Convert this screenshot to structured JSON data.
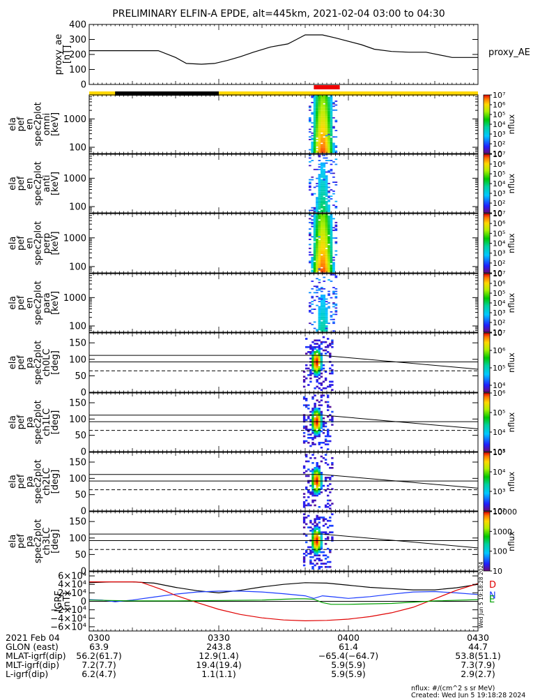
{
  "chart_data": {
    "type": "line",
    "title": "PRELIMINARY ELFIN-A EPDE, alt=445km, 2021-02-04 03:00 to 04:30",
    "time_axis": {
      "range_minutes": [
        0,
        90
      ],
      "ticks": [
        {
          "t": 0,
          "label": "0300"
        },
        {
          "t": 30,
          "label": "0330"
        },
        {
          "t": 60,
          "label": "0400"
        },
        {
          "t": 90,
          "label": "0430"
        }
      ]
    },
    "bars": {
      "red": [
        [
          52.0,
          58.0
        ]
      ],
      "black": [
        [
          6.0,
          30.0
        ]
      ]
    },
    "panels": [
      {
        "id": "proxy_ae",
        "kind": "line",
        "ylabel": [
          "proxy_ae",
          "[nT]"
        ],
        "ylim": [
          0,
          400
        ],
        "yticks": [
          {
            "v": 0,
            "label": "0"
          },
          {
            "v": 100,
            "label": "100"
          },
          {
            "v": 200,
            "label": "200"
          },
          {
            "v": 300,
            "label": "300"
          },
          {
            "v": 400,
            "label": "400"
          }
        ],
        "legend": "proxy_AE",
        "series": [
          {
            "color": "#000000",
            "t": [
              0,
              16,
              20,
              22.5,
              26,
              29,
              32,
              35,
              38,
              42,
              46,
              48,
              50,
              54,
              57,
              63,
              66,
              70,
              74,
              78,
              84,
              90
            ],
            "v": [
              225,
              225,
              180,
              140,
              135,
              140,
              160,
              185,
              215,
              250,
              270,
              300,
              330,
              330,
              310,
              265,
              235,
              220,
              215,
              215,
              180,
              180
            ]
          }
        ]
      },
      {
        "id": "omni",
        "kind": "spec_energy",
        "ylabel": [
          "ela",
          "pef",
          "en",
          "spec2plot",
          "omni",
          "[keV]"
        ],
        "ylim": [
          60,
          7000
        ],
        "yticks": [
          {
            "v": 100,
            "label": "100"
          },
          {
            "v": 1000,
            "label": "1000"
          }
        ],
        "colorbar": {
          "min_exp": 1,
          "max_exp": 7,
          "labels": [
            "10",
            "10²",
            "10³",
            "10⁴",
            "10⁵",
            "10⁶",
            "10⁷"
          ],
          "title": "nflux"
        },
        "peak": 6.8
      },
      {
        "id": "anti",
        "kind": "spec_energy",
        "ylabel": [
          "ela",
          "pef",
          "en",
          "spec2plot",
          "anti",
          "[keV]"
        ],
        "ylim": [
          60,
          7000
        ],
        "yticks": [
          {
            "v": 100,
            "label": "100"
          },
          {
            "v": 1000,
            "label": "1000"
          }
        ],
        "colorbar": {
          "min_exp": 1,
          "max_exp": 7,
          "labels": [
            "10",
            "10²",
            "10³",
            "10⁴",
            "10⁵",
            "10⁶",
            "10⁷"
          ],
          "title": "nflux"
        },
        "peak": 4.2
      },
      {
        "id": "perp",
        "kind": "spec_energy",
        "ylabel": [
          "ela",
          "pef",
          "en",
          "spec2plot",
          "perp",
          "[keV]"
        ],
        "ylim": [
          60,
          7000
        ],
        "yticks": [
          {
            "v": 100,
            "label": "100"
          },
          {
            "v": 1000,
            "label": "1000"
          }
        ],
        "colorbar": {
          "min_exp": 1,
          "max_exp": 7,
          "labels": [
            "10",
            "10²",
            "10³",
            "10⁴",
            "10⁵",
            "10⁶",
            "10⁷"
          ],
          "title": "nflux"
        },
        "peak": 6.8
      },
      {
        "id": "para",
        "kind": "spec_energy",
        "ylabel": [
          "ela",
          "pef",
          "en",
          "spec2plot",
          "para",
          "[keV]"
        ],
        "ylim": [
          60,
          7000
        ],
        "yticks": [
          {
            "v": 100,
            "label": "100"
          },
          {
            "v": 1000,
            "label": "1000"
          }
        ],
        "colorbar": {
          "min_exp": 1,
          "max_exp": 7,
          "labels": [
            "10",
            "10²",
            "10³",
            "10⁴",
            "10⁵",
            "10⁶",
            "10⁷"
          ],
          "title": "nflux"
        },
        "peak": 3.8
      },
      {
        "id": "ch0LC",
        "kind": "spec_pa",
        "ylabel": [
          "ela",
          "pef",
          "pa",
          "spec2plot",
          "ch0LC",
          "[deg]"
        ],
        "ylim": [
          0,
          180
        ],
        "yticks": [
          {
            "v": 0,
            "label": "0"
          },
          {
            "v": 50,
            "label": "50"
          },
          {
            "v": 100,
            "label": "100"
          },
          {
            "v": 150,
            "label": "150"
          }
        ],
        "colorbar": {
          "min_exp": 3.6,
          "max_exp": 7,
          "labels": [
            "10⁴",
            "10⁵",
            "10⁶",
            "10⁷"
          ],
          "label_exps": [
            4,
            5,
            6,
            7
          ],
          "title": "nflux"
        },
        "lc_lines": true
      },
      {
        "id": "ch1LC",
        "kind": "spec_pa",
        "ylabel": [
          "ela",
          "pef",
          "pa",
          "spec2plot",
          "ch1LC",
          "[deg]"
        ],
        "ylim": [
          0,
          180
        ],
        "yticks": [
          {
            "v": 0,
            "label": "0"
          },
          {
            "v": 50,
            "label": "50"
          },
          {
            "v": 100,
            "label": "100"
          },
          {
            "v": 150,
            "label": "150"
          }
        ],
        "colorbar": {
          "min_exp": 3,
          "max_exp": 6,
          "labels": [
            "10³",
            "10⁴",
            "10⁵",
            "10⁶"
          ],
          "label_exps": [
            3,
            4,
            5,
            6
          ],
          "title": "nflux"
        },
        "lc_lines": true
      },
      {
        "id": "ch2LC",
        "kind": "spec_pa",
        "ylabel": [
          "ela",
          "pef",
          "pa",
          "spec2plot",
          "ch2LC",
          "[deg]"
        ],
        "ylim": [
          0,
          180
        ],
        "yticks": [
          {
            "v": 0,
            "label": "0"
          },
          {
            "v": 50,
            "label": "50"
          },
          {
            "v": 100,
            "label": "100"
          },
          {
            "v": 150,
            "label": "150"
          }
        ],
        "colorbar": {
          "min_exp": 2,
          "max_exp": 5,
          "labels": [
            "10²",
            "10³",
            "10⁴",
            "10⁵"
          ],
          "label_exps": [
            2,
            3,
            4,
            5
          ],
          "title": "nflux"
        },
        "lc_lines": true
      },
      {
        "id": "ch3LC",
        "kind": "spec_pa",
        "ylabel": [
          "ela",
          "pef",
          "pa",
          "spec2plot",
          "ch3LC",
          "[deg]"
        ],
        "ylim": [
          0,
          180
        ],
        "yticks": [
          {
            "v": 0,
            "label": "0"
          },
          {
            "v": 50,
            "label": "50"
          },
          {
            "v": 100,
            "label": "100"
          },
          {
            "v": 150,
            "label": "150"
          }
        ],
        "colorbar": {
          "min_exp": 1,
          "max_exp": 4,
          "labels": [
            "10",
            "100",
            "1000",
            "10000"
          ],
          "label_exps": [
            1,
            2,
            3,
            4
          ],
          "title": "nflux"
        },
        "lc_lines": true
      },
      {
        "id": "igrf",
        "kind": "line",
        "ylabel": [
          "IGRF",
          "[nT]"
        ],
        "ylim": [
          -70000,
          70000
        ],
        "yticks": [
          {
            "v": -60000,
            "label": "−6×10⁴"
          },
          {
            "v": -40000,
            "label": "−4×10⁴"
          },
          {
            "v": -20000,
            "label": "−2×10⁴"
          },
          {
            "v": 0,
            "label": "0"
          },
          {
            "v": 20000,
            "label": "2×10⁴"
          },
          {
            "v": 40000,
            "label": "4×10⁴"
          },
          {
            "v": 60000,
            "label": "6×10⁴"
          }
        ],
        "legend_letters": [
          {
            "text": "D",
            "color": "#e00000",
            "v": 40000
          },
          {
            "text": "N",
            "color": "#1a3aff",
            "v": 15000
          },
          {
            "text": "E",
            "color": "#00a000",
            "v": 6000
          }
        ],
        "series": [
          {
            "color": "#000000",
            "t": [
              0,
              5,
              10,
              15,
              20,
              25,
              30,
              35,
              40,
              45,
              50,
              55,
              60,
              65,
              70,
              75,
              80,
              85,
              90
            ],
            "v": [
              44000,
              46000,
              46000,
              43000,
              33000,
              25000,
              20000,
              26000,
              34000,
              40000,
              44000,
              43000,
              38000,
              33000,
              30000,
              27000,
              27000,
              32000,
              40000
            ]
          },
          {
            "color": "#1a3aff",
            "t": [
              0,
              3,
              6,
              10,
              15,
              20,
              25,
              30,
              35,
              40,
              45,
              50,
              52,
              54,
              57,
              60,
              65,
              70,
              75,
              80,
              85,
              90
            ],
            "v": [
              4000,
              3000,
              -1000,
              3000,
              10000,
              17000,
              22000,
              24000,
              24000,
              22000,
              18000,
              13000,
              7000,
              13000,
              10000,
              7000,
              11000,
              17000,
              22000,
              23000,
              20000,
              16000
            ]
          },
          {
            "color": "#e00000",
            "t": [
              0,
              10,
              12,
              14,
              17,
              20,
              25,
              30,
              35,
              40,
              45,
              50,
              55,
              60,
              65,
              70,
              75,
              80,
              85,
              90
            ],
            "v": [
              46000,
              46000,
              45000,
              38000,
              27000,
              14000,
              -3000,
              -19000,
              -31000,
              -39000,
              -44000,
              -46000,
              -45000,
              -42000,
              -36000,
              -27000,
              -14000,
              6000,
              26000,
              42000
            ]
          },
          {
            "color": "#00a000",
            "t": [
              0,
              5,
              10,
              20,
              30,
              40,
              45,
              48,
              50,
              52,
              54,
              56,
              60,
              70,
              80,
              90
            ],
            "v": [
              3000,
              2000,
              1000,
              1000,
              2000,
              3000,
              5000,
              6000,
              6000,
              5000,
              -3000,
              -7000,
              -7000,
              -5000,
              1000,
              4000
            ]
          }
        ]
      }
    ],
    "orbit_table": {
      "rows": [
        {
          "label": "2021 Feb 04",
          "values": [
            "0300",
            "0330",
            "0400",
            "0430"
          ]
        },
        {
          "label": "GLON (east)",
          "values": [
            "63.9",
            "243.8",
            "61.4",
            "44.7"
          ]
        },
        {
          "label": "MLAT-igrf(dip)",
          "values": [
            "56.2(61.7)",
            "12.9(1.4)",
            "−65.4(−64.7)",
            "53.8(51.1)"
          ]
        },
        {
          "label": "MLT-igrf(dip)",
          "values": [
            "7.2(7.7)",
            "19.4(19.4)",
            "5.9(5.9)",
            "7.3(7.9)"
          ]
        },
        {
          "label": "L-igrf(dip)",
          "values": [
            "6.2(4.7)",
            "1.1(1.1)",
            "5.9(5.9)",
            "2.9(2.7)"
          ]
        }
      ]
    },
    "footnote_units": "nflux: #/(cm^2 s sr MeV)",
    "footnote_created": "Created: Wed Jun  5 19:18:28 2024",
    "side_stamp": "Wed Jun  5 19:18:28 2024"
  }
}
